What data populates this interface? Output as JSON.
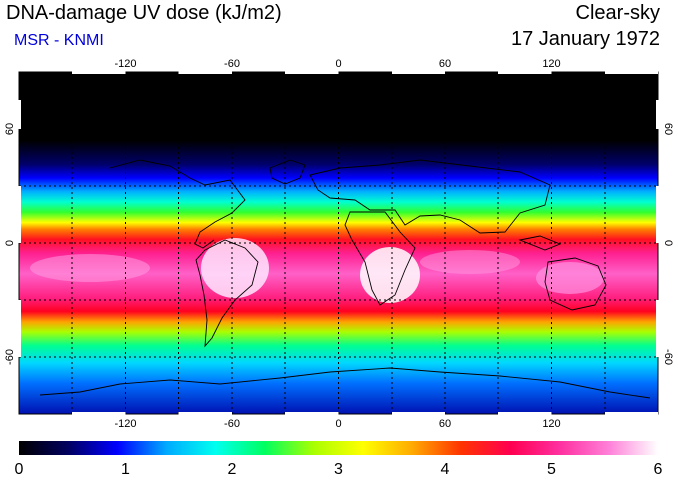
{
  "header": {
    "title": "DNA-damage UV dose (kJ/m2)",
    "credit": "MSR - KNMI",
    "mode": "Clear-sky",
    "date": "17 January 1972"
  },
  "map": {
    "longitude_ticks": [
      "-120",
      "-60",
      "0",
      "60",
      "120"
    ],
    "latitude_ticks": [
      "60",
      "0",
      "-60"
    ],
    "lon_range": [
      -180,
      180
    ],
    "lat_range": [
      -90,
      90
    ]
  },
  "colorbar": {
    "labels": [
      "0",
      "1",
      "2",
      "3",
      "4",
      "5",
      "6"
    ],
    "min": 0,
    "max": 6
  },
  "colors": {
    "credit": "#0000dd",
    "stops": [
      "#000000",
      "#000060",
      "#0000ff",
      "#00aaff",
      "#00ffee",
      "#00ff60",
      "#aaff00",
      "#ffff00",
      "#ffaa00",
      "#ff3300",
      "#ff0050",
      "#ff30a0",
      "#ff80d8",
      "#ffffff"
    ]
  }
}
